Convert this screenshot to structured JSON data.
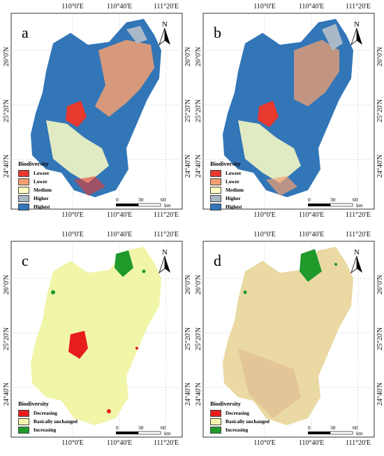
{
  "panels": [
    {
      "id": "a",
      "label": "a",
      "legend_title": "Biodiversity",
      "legend": [
        {
          "label": "Lowest",
          "color": "#e8392f"
        },
        {
          "label": "Lower",
          "color": "#f3a070"
        },
        {
          "label": "Medium",
          "color": "#ffffc4"
        },
        {
          "label": "Higher",
          "color": "#a9b9c8"
        },
        {
          "label": "Highest",
          "color": "#3276b8"
        }
      ]
    },
    {
      "id": "b",
      "label": "b",
      "legend_title": "Biodiversity",
      "legend": [
        {
          "label": "Lowest",
          "color": "#e8392f"
        },
        {
          "label": "Lower",
          "color": "#f3a070"
        },
        {
          "label": "Medium",
          "color": "#ffffc4"
        },
        {
          "label": "Higher",
          "color": "#a9b9c8"
        },
        {
          "label": "Highest",
          "color": "#3276b8"
        }
      ]
    },
    {
      "id": "c",
      "label": "c",
      "legend_title": "Biodiversity",
      "legend": [
        {
          "label": "Decreasing",
          "color": "#e81c1c"
        },
        {
          "label": "Basically unchanged",
          "color": "#f5f5b0"
        },
        {
          "label": "Increasing",
          "color": "#1f9a2a"
        }
      ]
    },
    {
      "id": "d",
      "label": "d",
      "legend_title": "Biodiversity",
      "legend": [
        {
          "label": "Decreasing",
          "color": "#e81c1c"
        },
        {
          "label": "Basically unchanged",
          "color": "#f5f5b0"
        },
        {
          "label": "Increasing",
          "color": "#1f9a2a"
        }
      ]
    }
  ],
  "axes": {
    "longitudes": [
      "110°0'E",
      "110°40'E",
      "111°20'E"
    ],
    "latitudes": [
      "26°0'N",
      "25°20'N",
      "24°40'N"
    ]
  },
  "scale": {
    "labels": [
      "0",
      "30",
      "60"
    ],
    "unit": "km"
  },
  "north_label": "N"
}
